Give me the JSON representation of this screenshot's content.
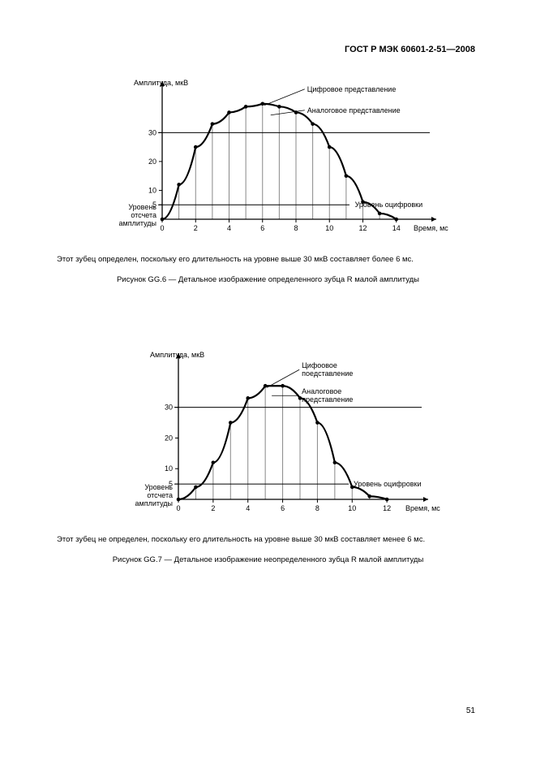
{
  "doc_header": "ГОСТ Р МЭК 60601-2-51—2008",
  "page_number": "51",
  "chart_common": {
    "y_axis_label": "Амплитуда, мкВ",
    "x_axis_label": "Время, мс",
    "y_origin_label1": "Уровень",
    "y_origin_label2": "отсчета",
    "y_origin_label3": "амплитуды",
    "threshold_label": "30",
    "digitization_label": "Уровень оцифровки",
    "digital_rep_label": "Цифровое представление",
    "analog_rep_label": "Аналоговое представление",
    "digital_rep_label_line1": "Цифоовое",
    "digital_rep_label_line2": "поедставление",
    "analog_rep_label_line1": "Аналоговое",
    "analog_rep_label_line2": "представление",
    "y_ticks": [
      "5",
      "10",
      "20",
      "30"
    ],
    "axis_color": "#000000",
    "grid_color": "#888888",
    "curve_color": "#000000",
    "bg_color": "#ffffff",
    "label_fontsize": 9
  },
  "figure1": {
    "x_ticks": [
      "0",
      "2",
      "4",
      "6",
      "8",
      "10",
      "12",
      "14"
    ],
    "note": "Этот зубец определен, поскольку его длительность на уровне выше 30 мкВ составляет более 6 мс.",
    "caption": "Рисунок  GG.6 — Детальное изображение определенного зубца R малой амплитуды",
    "curve_points": [
      {
        "x_ms": 0,
        "y_uv": 0
      },
      {
        "x_ms": 1,
        "y_uv": 12
      },
      {
        "x_ms": 2,
        "y_uv": 25
      },
      {
        "x_ms": 3,
        "y_uv": 33
      },
      {
        "x_ms": 4,
        "y_uv": 37
      },
      {
        "x_ms": 5,
        "y_uv": 39
      },
      {
        "x_ms": 6,
        "y_uv": 40
      },
      {
        "x_ms": 7,
        "y_uv": 39
      },
      {
        "x_ms": 8,
        "y_uv": 37
      },
      {
        "x_ms": 9,
        "y_uv": 33
      },
      {
        "x_ms": 10,
        "y_uv": 25
      },
      {
        "x_ms": 11,
        "y_uv": 15
      },
      {
        "x_ms": 12,
        "y_uv": 6
      },
      {
        "x_ms": 13,
        "y_uv": 2
      },
      {
        "x_ms": 14,
        "y_uv": 0
      }
    ],
    "x_extent_ms": 16,
    "y_extent_uv": 45,
    "peak_y": 40
  },
  "figure2": {
    "x_ticks": [
      "0",
      "2",
      "4",
      "6",
      "8",
      "10",
      "12"
    ],
    "note": "Этот зубец не определен, поскольку его длительность на уровне выше 30 мкВ составляет менее 6 мс.",
    "caption": "Рисунок  GG.7 — Детальное изображение неопределенного зубца R малой амплитуды",
    "curve_points": [
      {
        "x_ms": 0,
        "y_uv": 0
      },
      {
        "x_ms": 1,
        "y_uv": 4
      },
      {
        "x_ms": 2,
        "y_uv": 12
      },
      {
        "x_ms": 3,
        "y_uv": 25
      },
      {
        "x_ms": 4,
        "y_uv": 33
      },
      {
        "x_ms": 5,
        "y_uv": 37
      },
      {
        "x_ms": 6,
        "y_uv": 37
      },
      {
        "x_ms": 7,
        "y_uv": 33
      },
      {
        "x_ms": 8,
        "y_uv": 25
      },
      {
        "x_ms": 9,
        "y_uv": 12
      },
      {
        "x_ms": 10,
        "y_uv": 4
      },
      {
        "x_ms": 11,
        "y_uv": 1
      },
      {
        "x_ms": 12,
        "y_uv": 0
      }
    ],
    "x_extent_ms": 14,
    "y_extent_uv": 45,
    "peak_y": 37
  }
}
